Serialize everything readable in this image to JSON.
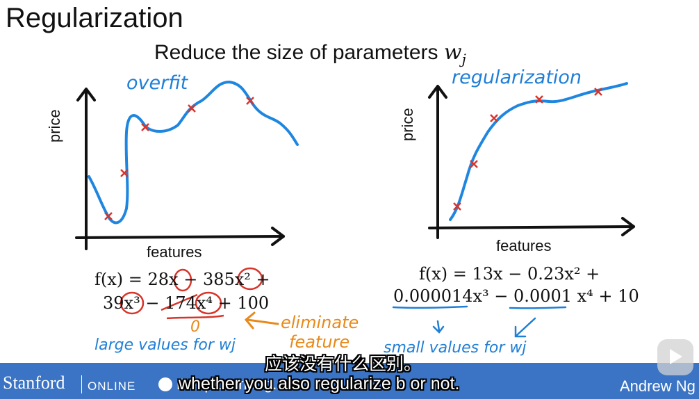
{
  "slide": {
    "title": "Regularization",
    "subtitle": "Reduce the size of parameters",
    "subtitle_var": "w",
    "subtitle_sub": "j"
  },
  "left_plot": {
    "annotation": "overfit",
    "y_label": "price",
    "x_label": "features",
    "formula_line1": "f(x) = 28x − 385x² +",
    "formula_line2": "39x³ − 174x⁴ + 100",
    "zero_mark": "0",
    "large_values_note": "large values for wj",
    "eliminate_note": "eliminate",
    "feature_note": "feature"
  },
  "right_plot": {
    "annotation": "regularization",
    "y_label": "price",
    "x_label": "features",
    "formula_line1": "f(x) = 13x − 0.23x² +",
    "formula_line2": "0.000014x³ − 0.0001 x⁴ + 10",
    "small_values_note": "small values for wj"
  },
  "footer": {
    "logo": "Stanford",
    "logo_suffix": "ONLINE",
    "partner": "DeepLearning.AI",
    "author": "Andrew Ng"
  },
  "subtitles": {
    "chinese": "应该没有什么区别。",
    "english": "whether you also regularize b or not."
  },
  "colors": {
    "curve": "#1f86e0",
    "marks": "#d8342a",
    "annotation_blue": "#1f7fd6",
    "annotation_orange": "#e8891a",
    "footer_bar": "#3b74c4"
  }
}
